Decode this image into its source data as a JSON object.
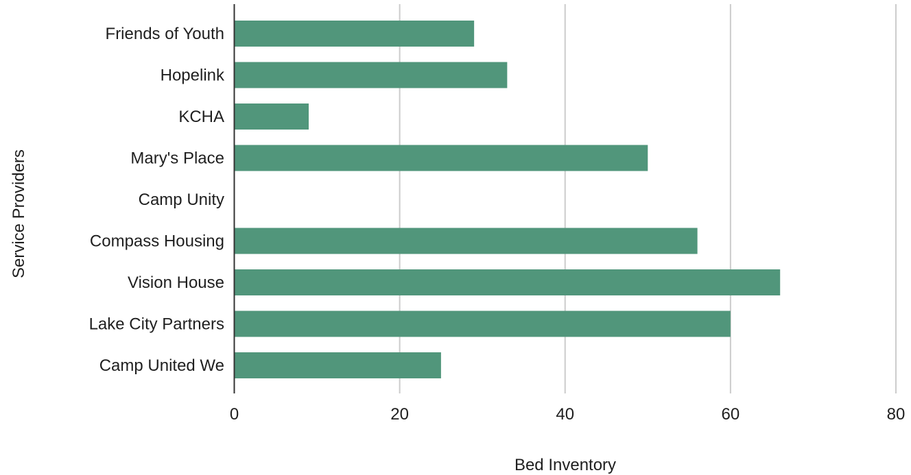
{
  "chart_data": {
    "type": "bar",
    "orientation": "horizontal",
    "title": "",
    "xlabel": "Bed Inventory",
    "ylabel": "Service Providers",
    "categories": [
      "Friends of Youth",
      "Hopelink",
      "KCHA",
      "Mary's Place",
      "Camp Unity",
      "Compass Housing",
      "Vision House",
      "Lake City Partners",
      "Camp United We"
    ],
    "values": [
      29,
      33,
      9,
      50,
      0,
      56,
      66,
      60,
      25
    ],
    "xlim": [
      0,
      80
    ],
    "x_ticks": [
      "0",
      "20",
      "40",
      "60",
      "80"
    ],
    "grid": true,
    "bar_color": "#51967b",
    "grid_color": "#cccccc",
    "axis_color": "#333333",
    "legend": "none"
  }
}
